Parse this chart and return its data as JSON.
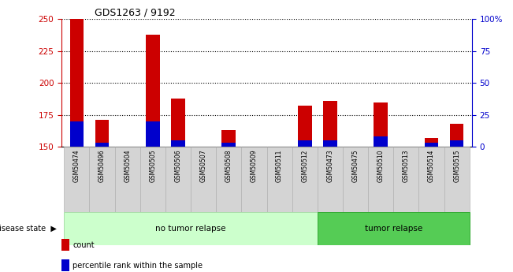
{
  "title": "GDS1263 / 9192",
  "samples": [
    "GSM50474",
    "GSM50496",
    "GSM50504",
    "GSM50505",
    "GSM50506",
    "GSM50507",
    "GSM50508",
    "GSM50509",
    "GSM50511",
    "GSM50512",
    "GSM50473",
    "GSM50475",
    "GSM50510",
    "GSM50513",
    "GSM50514",
    "GSM50515"
  ],
  "count_values": [
    250,
    171,
    150,
    238,
    188,
    150,
    163,
    150,
    150,
    182,
    186,
    150,
    185,
    150,
    157,
    168
  ],
  "percentile_values": [
    20,
    3,
    0,
    20,
    5,
    0,
    3,
    0,
    0,
    5,
    5,
    0,
    8,
    0,
    3,
    5
  ],
  "y_min": 150,
  "y_max": 250,
  "y_ticks": [
    150,
    175,
    200,
    225,
    250
  ],
  "y2_ticks": [
    0,
    25,
    50,
    75,
    100
  ],
  "y2_tick_labels": [
    "0",
    "25",
    "50",
    "75",
    "100%"
  ],
  "groups": [
    {
      "label": "no tumor relapse",
      "start": 0,
      "end": 9,
      "color": "#ccffcc",
      "edge": "#aaddaa"
    },
    {
      "label": "tumor relapse",
      "start": 10,
      "end": 15,
      "color": "#55cc55",
      "edge": "#33aa33"
    }
  ],
  "bar_color_red": "#cc0000",
  "bar_color_blue": "#0000cc",
  "bar_width": 0.55,
  "tick_label_bg": "#d4d4d4",
  "tick_label_edge": "#aaaaaa",
  "background_color": "#ffffff",
  "left_axis_color": "#cc0000",
  "right_axis_color": "#0000cc",
  "grid_color": "#000000",
  "legend_items": [
    "count",
    "percentile rank within the sample"
  ],
  "disease_state_label": "disease state"
}
